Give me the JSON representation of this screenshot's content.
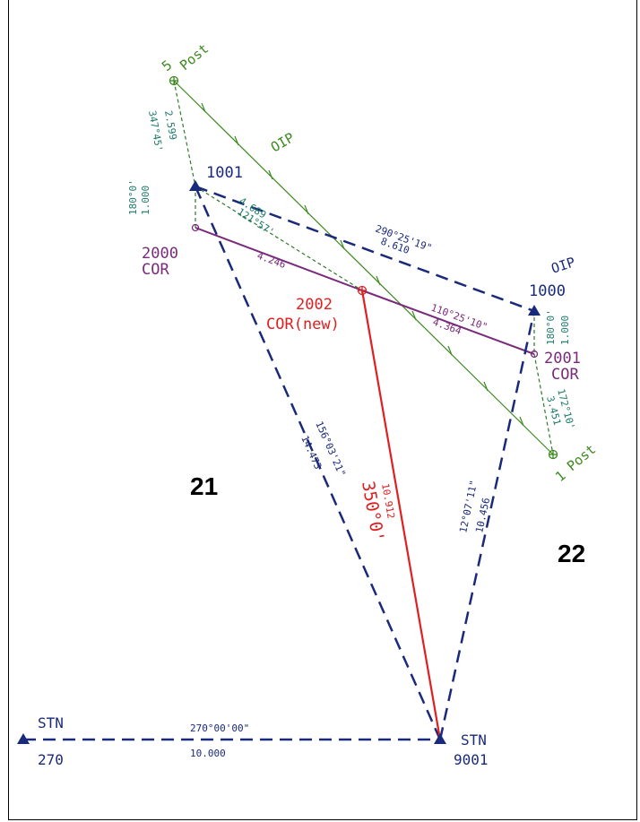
{
  "colors": {
    "blue": "#1a2a7a",
    "green": "#3b8a1e",
    "teal": "#1d7a6a",
    "purple": "#7a2a7a",
    "red": "#e02020"
  },
  "points": {
    "p5": {
      "num": "5",
      "desc": "Post"
    },
    "p1001": {
      "num": "1001",
      "desc": ""
    },
    "p2000": {
      "num": "2000",
      "desc": "COR"
    },
    "p2002": {
      "num": "2002",
      "desc": "COR(new)"
    },
    "p1000": {
      "num": "1000",
      "desc": "OIP"
    },
    "p2001": {
      "num": "2001",
      "desc": "COR"
    },
    "p1": {
      "num": "1",
      "desc": "Post"
    },
    "stn270": {
      "num": "270",
      "desc": "STN"
    },
    "stn9001": {
      "num": "9001",
      "desc": "STN"
    }
  },
  "annotations": {
    "oip_top": "OIP",
    "l_5_1001_dist": "2.599",
    "l_5_1001_brg": "347°45'",
    "l_1001_2000_brg": "180°0'",
    "l_1001_2000_dist": "1.000",
    "l_1001_2002_dist": "4.689",
    "l_1001_2002_brg": "121°57'",
    "l_2000_2002_dist": "4.246",
    "l_1001_1000_brg": "290°25'19\"",
    "l_1001_1000_dist": "8.610",
    "l_2002_2001_brg": "110°25'10\"",
    "l_2002_2001_dist": "4.364",
    "l_1000_2001_brg": "180°0'",
    "l_1000_2001_dist": "1.000",
    "l_2001_1_brg": "172°10'",
    "l_2001_1_dist": "3.451",
    "l_9001_1001_brg": "156°03'21\"",
    "l_9001_1001_dist": "14.473",
    "l_9001_2002_dist": "10.912",
    "l_9001_2002_brg": "350°0'",
    "l_9001_1000_brg": "12°07'11\"",
    "l_9001_1000_dist": "10.456",
    "l_270_9001_brg": "270°00'00\"",
    "l_270_9001_dist": "10.000"
  },
  "lots": {
    "left": "21",
    "right": "22"
  }
}
